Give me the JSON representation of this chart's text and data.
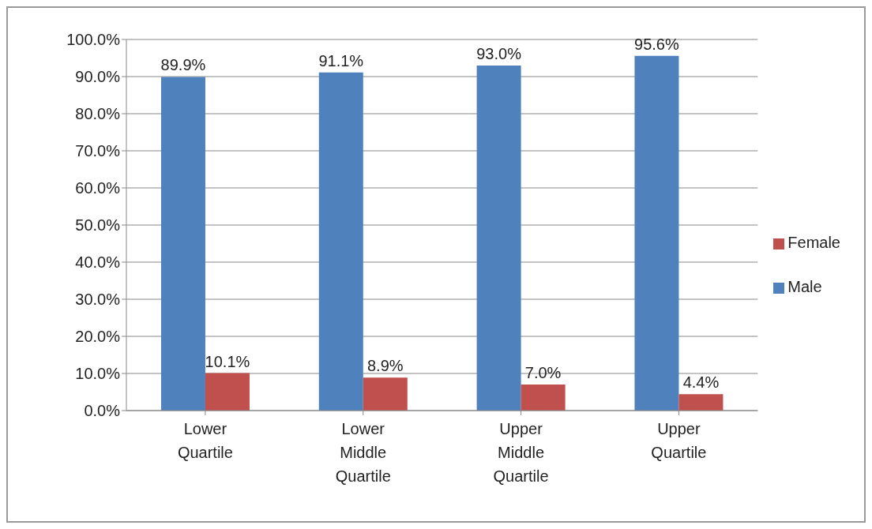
{
  "chart_data": {
    "type": "bar",
    "categories": [
      "Lower Quartile",
      "Lower Middle Quartile",
      "Upper Middle Quartile",
      "Upper Quartile"
    ],
    "series": [
      {
        "name": "Male",
        "color": "#4f81bd",
        "values": [
          89.9,
          91.1,
          93.0,
          95.6
        ],
        "value_labels": [
          "89.9%",
          "91.1%",
          "93.0%",
          "95.6%"
        ]
      },
      {
        "name": "Female",
        "color": "#c0504d",
        "values": [
          10.1,
          8.9,
          7.0,
          4.4
        ],
        "value_labels": [
          "10.1%",
          "8.9%",
          "7.0%",
          "4.4%"
        ]
      }
    ],
    "ylim": [
      0,
      100
    ],
    "yticks": [
      {
        "value": 0,
        "label": "0.0%"
      },
      {
        "value": 10,
        "label": "10.0%"
      },
      {
        "value": 20,
        "label": "20.0%"
      },
      {
        "value": 30,
        "label": "30.0%"
      },
      {
        "value": 40,
        "label": "40.0%"
      },
      {
        "value": 50,
        "label": "50.0%"
      },
      {
        "value": 60,
        "label": "60.0%"
      },
      {
        "value": 70,
        "label": "70.0%"
      },
      {
        "value": 80,
        "label": "80.0%"
      },
      {
        "value": 90,
        "label": "90.0%"
      },
      {
        "value": 100,
        "label": "100.0%"
      }
    ],
    "grid": "y",
    "legend": "right"
  }
}
